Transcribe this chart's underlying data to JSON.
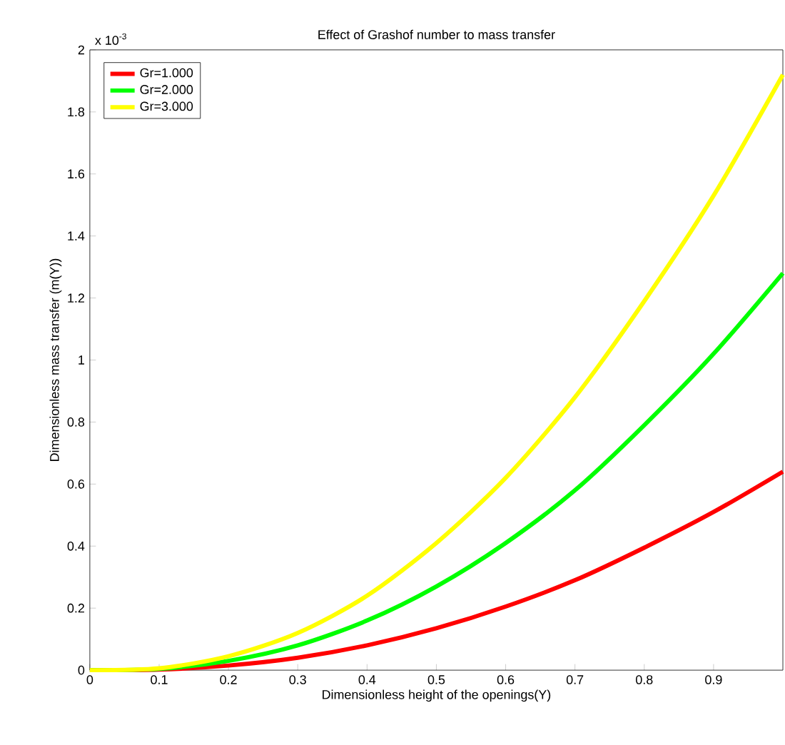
{
  "chart_data": {
    "type": "line",
    "title": "Effect of Grashof number to mass transfer",
    "xlabel": "Dimensionless height of the openings(Y)",
    "ylabel": "Dimensionless mass transfer (m(Y))",
    "annotations": [
      "x 10$^{-3}$"
    ],
    "x": [
      0,
      0.1,
      0.2,
      0.3,
      0.4,
      0.5,
      0.6,
      0.7,
      0.8,
      0.9,
      1.0
    ],
    "series": [
      {
        "name": "Gr=1.000",
        "color": "#ff0000",
        "values": [
          0,
          0.002,
          0.015,
          0.04,
          0.08,
          0.135,
          0.205,
          0.29,
          0.395,
          0.51,
          0.64
        ]
      },
      {
        "name": "Gr=2.000",
        "color": "#00ff00",
        "values": [
          0,
          0.004,
          0.03,
          0.08,
          0.16,
          0.27,
          0.41,
          0.58,
          0.79,
          1.02,
          1.28
        ]
      },
      {
        "name": "Gr=3.000",
        "color": "#ffff00",
        "values": [
          0,
          0.006,
          0.045,
          0.12,
          0.24,
          0.41,
          0.62,
          0.88,
          1.19,
          1.53,
          1.92
        ]
      }
    ],
    "xlim": [
      0,
      1
    ],
    "ylim": [
      0,
      2
    ],
    "xticks": [
      0,
      0.1,
      0.2,
      0.3,
      0.4,
      0.5,
      0.6,
      0.7,
      0.8,
      0.9
    ],
    "yticks": [
      0,
      0.2,
      0.4,
      0.6,
      0.8,
      1,
      1.2,
      1.4,
      1.6,
      1.8,
      2
    ],
    "legend": "top left",
    "grid": false,
    "marker": "none",
    "line_style": "solid"
  }
}
